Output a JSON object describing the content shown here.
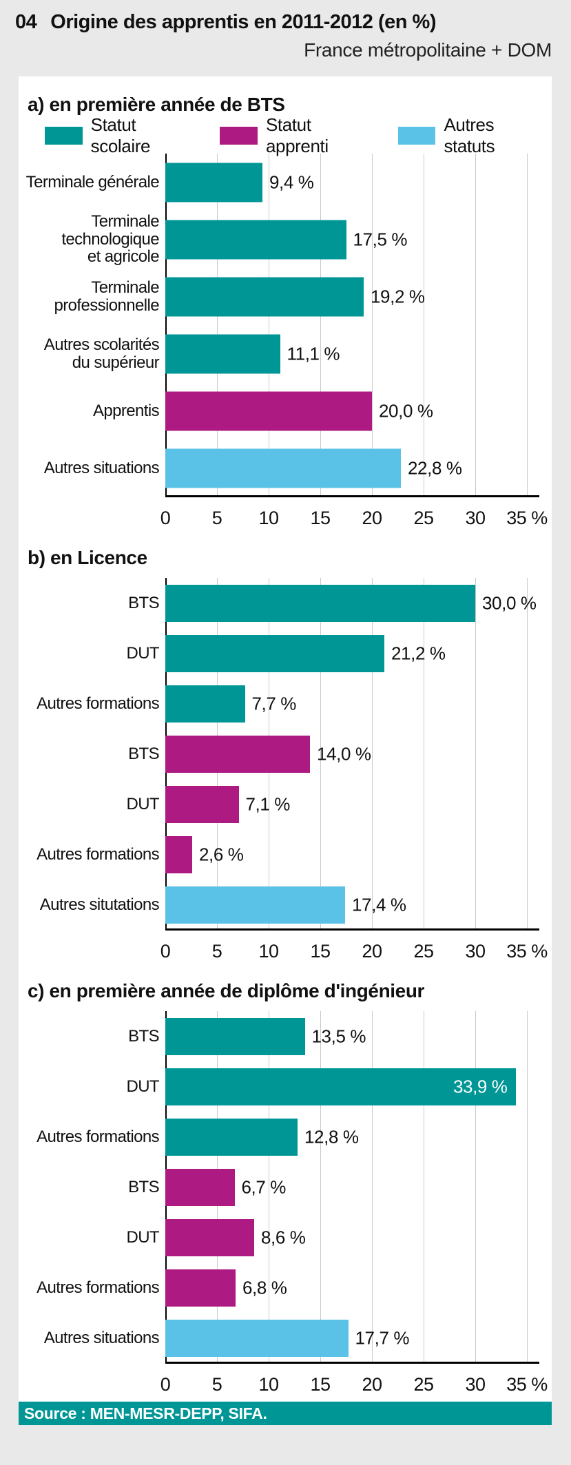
{
  "header": {
    "number": "04",
    "title": "Origine des apprentis en 2011-2012 (en %)",
    "subtitle": "France métropolitaine + DOM"
  },
  "colors": {
    "background": "#e9e9e9",
    "panel": "#ffffff",
    "axis": "#000000",
    "gridline": "#c9c9c9",
    "source_bar": "#009696"
  },
  "legend": {
    "items": [
      {
        "key": "statut_scolaire",
        "label": "Statut scolaire",
        "color": "#009696"
      },
      {
        "key": "statut_apprenti",
        "label": "Statut apprenti",
        "color": "#ad1a82"
      },
      {
        "key": "autres_statuts",
        "label": "Autres statuts",
        "color": "#5bc2e7"
      }
    ]
  },
  "chart_data": [
    {
      "type": "bar",
      "orientation": "horizontal",
      "title": "a) en première année de BTS",
      "categories": [
        "Terminale générale",
        "Terminale\ntechnologique\net agricole",
        "Terminale\nprofessionnelle",
        "Autres scolarités\ndu supérieur",
        "Apprentis",
        "Autres situations"
      ],
      "values": [
        9.4,
        17.5,
        19.2,
        11.1,
        20.0,
        22.8
      ],
      "value_labels": [
        "9,4 %",
        "17,5 %",
        "19,2 %",
        "11,1 %",
        "20,0 %",
        "22,8 %"
      ],
      "series_keys": [
        "statut_scolaire",
        "statut_scolaire",
        "statut_scolaire",
        "statut_scolaire",
        "statut_apprenti",
        "autres_statuts"
      ],
      "xlim": [
        0,
        35
      ],
      "ticks": [
        0,
        5,
        10,
        15,
        20,
        25,
        30,
        35
      ],
      "tick_labels": [
        "0",
        "5",
        "10",
        "15",
        "20",
        "25",
        "30",
        "35 %"
      ],
      "inside_label_indices": [],
      "grid": true,
      "legend_position": "top"
    },
    {
      "type": "bar",
      "orientation": "horizontal",
      "title": "b) en Licence",
      "categories": [
        "BTS",
        "DUT",
        "Autres formations",
        "BTS",
        "DUT",
        "Autres formations",
        "Autres situtations"
      ],
      "values": [
        30.0,
        21.2,
        7.7,
        14.0,
        7.1,
        2.6,
        17.4
      ],
      "value_labels": [
        "30,0 %",
        "21,2 %",
        "7,7 %",
        "14,0 %",
        "7,1 %",
        "2,6 %",
        "17,4 %"
      ],
      "series_keys": [
        "statut_scolaire",
        "statut_scolaire",
        "statut_scolaire",
        "statut_apprenti",
        "statut_apprenti",
        "statut_apprenti",
        "autres_statuts"
      ],
      "xlim": [
        0,
        35
      ],
      "ticks": [
        0,
        5,
        10,
        15,
        20,
        25,
        30,
        35
      ],
      "tick_labels": [
        "0",
        "5",
        "10",
        "15",
        "20",
        "25",
        "30",
        "35 %"
      ],
      "inside_label_indices": [],
      "grid": true,
      "legend_position": "none"
    },
    {
      "type": "bar",
      "orientation": "horizontal",
      "title": "c) en première année de diplôme d'ingénieur",
      "categories": [
        "BTS",
        "DUT",
        "Autres formations",
        "BTS",
        "DUT",
        "Autres formations",
        "Autres situations"
      ],
      "values": [
        13.5,
        33.9,
        12.8,
        6.7,
        8.6,
        6.8,
        17.7
      ],
      "value_labels": [
        "13,5 %",
        "33,9 %",
        "12,8 %",
        "6,7 %",
        "8,6 %",
        "6,8 %",
        "17,7 %"
      ],
      "series_keys": [
        "statut_scolaire",
        "statut_scolaire",
        "statut_scolaire",
        "statut_apprenti",
        "statut_apprenti",
        "statut_apprenti",
        "autres_statuts"
      ],
      "xlim": [
        0,
        35
      ],
      "ticks": [
        0,
        5,
        10,
        15,
        20,
        25,
        30,
        35
      ],
      "tick_labels": [
        "0",
        "5",
        "10",
        "15",
        "20",
        "25",
        "30",
        "35 %"
      ],
      "inside_label_indices": [
        1
      ],
      "grid": true,
      "legend_position": "none"
    }
  ],
  "footer": {
    "source": "Source : MEN-MESR-DEPP, SIFA."
  }
}
